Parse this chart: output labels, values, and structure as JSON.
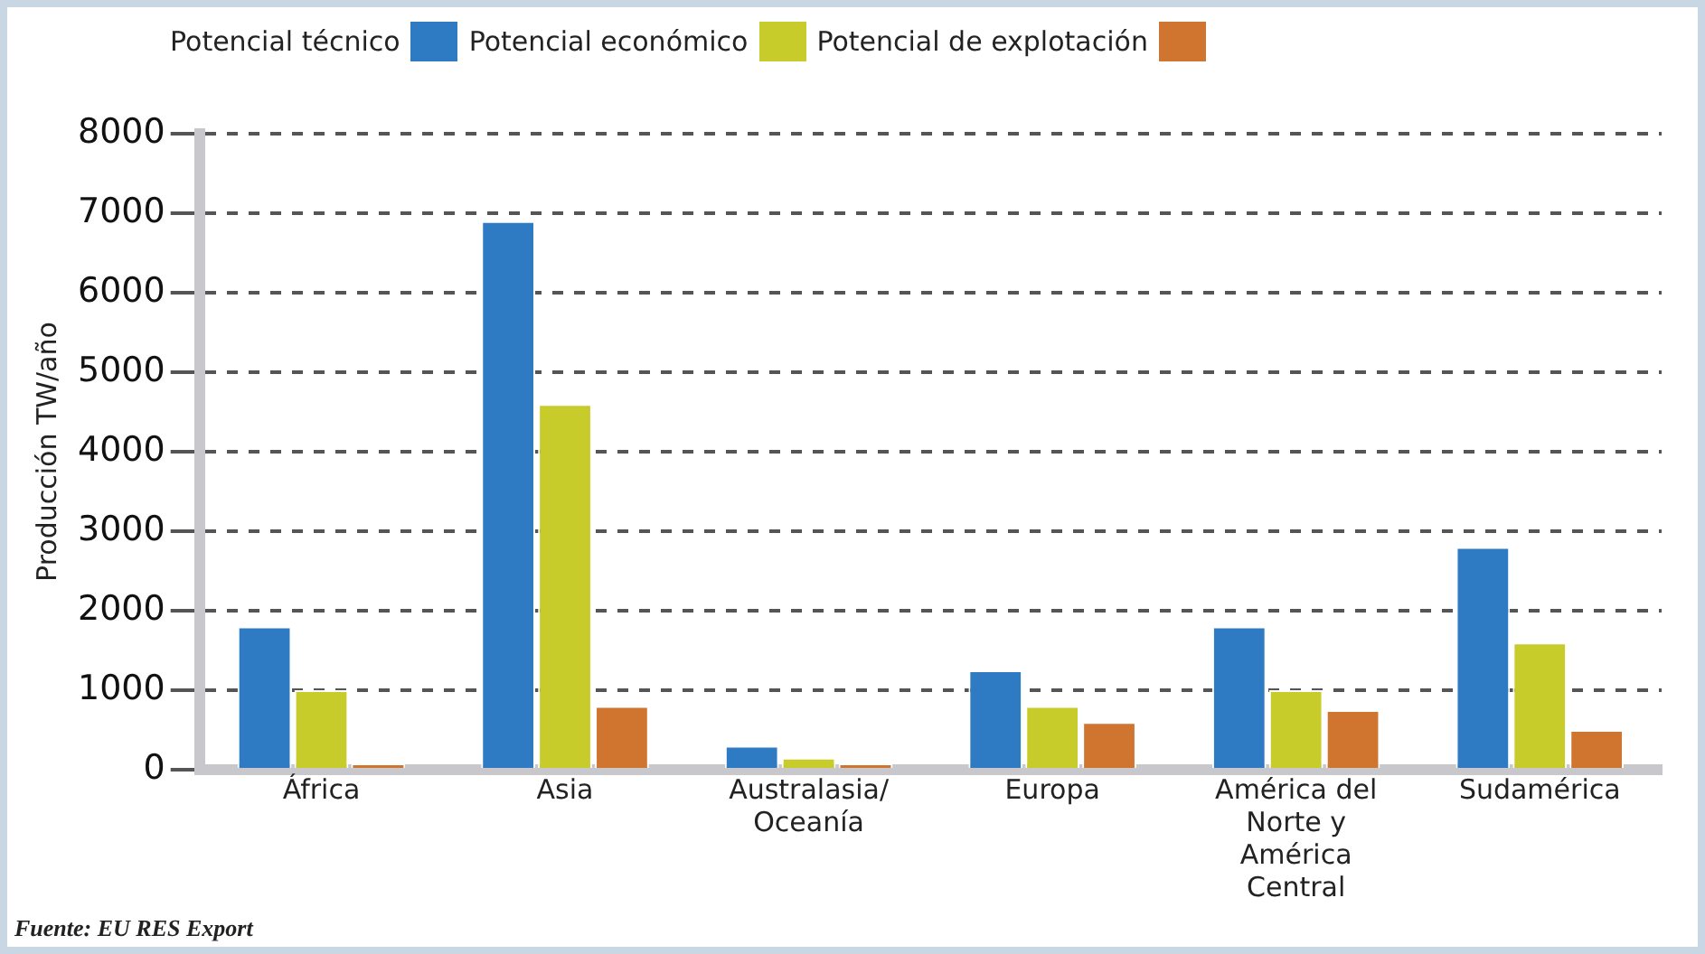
{
  "chart_data": {
    "type": "bar",
    "ylabel": "Producción TW/año",
    "categories": [
      "África",
      "Asia",
      "Australasia/ Oceanía",
      "Europa",
      "América del Norte y América Central",
      "Sudamérica"
    ],
    "series": [
      {
        "name": "Potencial técnico",
        "color": "#2e7bc4",
        "values": [
          1800,
          6900,
          300,
          1250,
          1800,
          2800
        ]
      },
      {
        "name": "Potencial económico",
        "color": "#c8cc2a",
        "values": [
          1000,
          4600,
          150,
          800,
          1000,
          1600
        ]
      },
      {
        "name": "Potencial de explotación",
        "color": "#d07530",
        "values": [
          80,
          800,
          80,
          600,
          750,
          500
        ]
      }
    ],
    "ylim": [
      0,
      8000
    ],
    "yticks": [
      0,
      1000,
      2000,
      3000,
      4000,
      5000,
      6000,
      7000,
      8000
    ],
    "grid": "y",
    "line_style": "dashed",
    "legend": "top",
    "annotations": [
      "Fuente: EU RES Export"
    ]
  }
}
